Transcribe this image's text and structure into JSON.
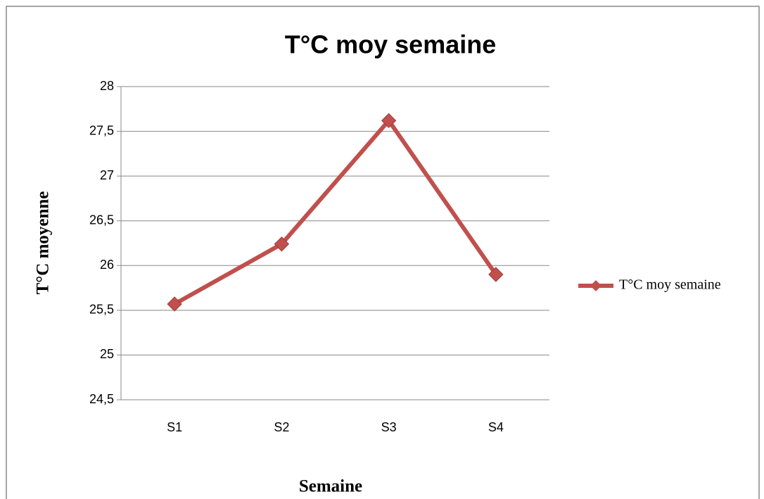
{
  "chart_data": {
    "type": "line",
    "title": "T°C moy semaine",
    "x_label": "Semaine",
    "y_label": "T°C moyenne",
    "categories": [
      "S1",
      "S2",
      "S3",
      "S4"
    ],
    "series": [
      {
        "name": "T°C moy semaine",
        "color": "#c0504d",
        "values": [
          25.57,
          26.24,
          27.62,
          25.9
        ]
      }
    ],
    "ylim": [
      24.5,
      28
    ],
    "yticks": [
      {
        "value": 24.5,
        "label": "24,5"
      },
      25,
      {
        "value": 25.5,
        "label": "25,5"
      },
      26,
      {
        "value": 26.5,
        "label": "26,5"
      },
      27,
      {
        "value": 27.5,
        "label": "27,5"
      },
      28
    ],
    "grid": true,
    "legend": "right"
  }
}
